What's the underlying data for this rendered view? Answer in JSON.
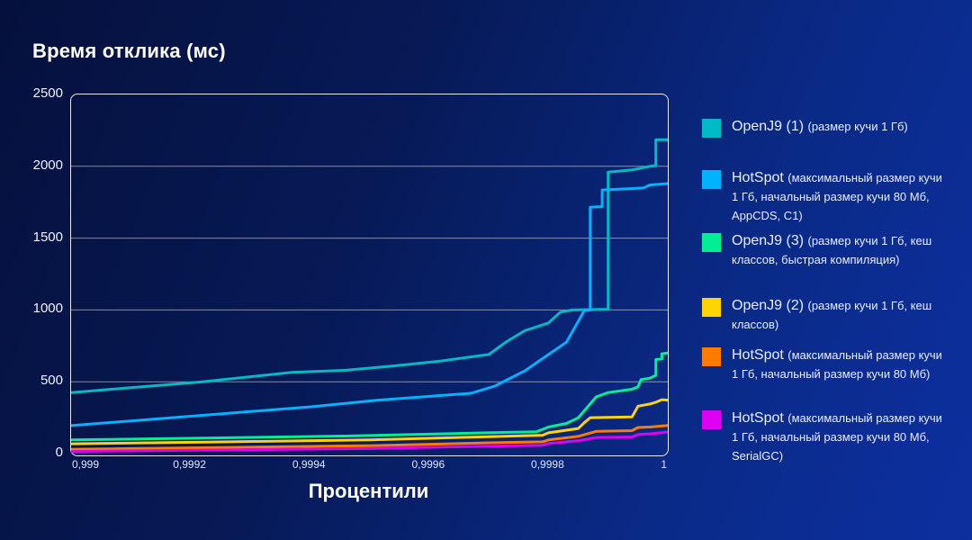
{
  "title": "Время отклика (мс)",
  "x_axis_title": "Процентили",
  "chart_data": {
    "type": "line",
    "title": "Время отклика (мс)",
    "xlabel": "Процентили",
    "ylabel": "",
    "xlim": [
      0.999,
      1.0
    ],
    "ylim": [
      0,
      2500
    ],
    "grid": "horizontal",
    "grid_values": [
      500,
      1000,
      1500,
      2000
    ],
    "legend_position": "right",
    "y_ticks": [
      {
        "value": 2500,
        "label": "2500"
      },
      {
        "value": 2000,
        "label": "2000"
      },
      {
        "value": 1500,
        "label": "1500"
      },
      {
        "value": 1000,
        "label": "1000"
      },
      {
        "value": 500,
        "label": "500"
      },
      {
        "value": 0,
        "label": "0"
      }
    ],
    "x_ticks": [
      {
        "value": 0.999,
        "label": "0,999"
      },
      {
        "value": 0.9992,
        "label": "0,9992"
      },
      {
        "value": 0.9994,
        "label": "0,9994"
      },
      {
        "value": 0.9996,
        "label": "0,9996"
      },
      {
        "value": 0.9998,
        "label": "0,9998"
      },
      {
        "value": 1.0,
        "label": "1"
      }
    ],
    "series": [
      {
        "id": "openj9-1",
        "name": "OpenJ9 (1)",
        "desc": "(размер кучи 1 Гб)",
        "color": "#00bac8",
        "points": [
          [
            0.999,
            425
          ],
          [
            0.99922,
            500
          ],
          [
            0.99937,
            565
          ],
          [
            0.99946,
            580
          ],
          [
            0.99954,
            610
          ],
          [
            0.99962,
            645
          ],
          [
            0.9997,
            690
          ],
          [
            0.99973,
            780
          ],
          [
            0.99976,
            855
          ],
          [
            0.9998,
            910
          ],
          [
            0.99982,
            985
          ],
          [
            0.99984,
            1000
          ],
          [
            0.9999,
            1005
          ],
          [
            0.9999,
            1960
          ],
          [
            0.99994,
            1975
          ],
          [
            0.99997,
            2000
          ],
          [
            0.99998,
            2005
          ],
          [
            0.99998,
            2185
          ],
          [
            1,
            2185
          ]
        ]
      },
      {
        "id": "hotspot-appcds-c1",
        "name": "HotSpot",
        "desc": "(максимальный размер кучи 1 Гб, начальный размер кучи 80 Мб, AppCDS, C1)",
        "color": "#00b3ff",
        "points": [
          [
            0.999,
            195
          ],
          [
            0.9994,
            325
          ],
          [
            0.99951,
            370
          ],
          [
            0.99967,
            420
          ],
          [
            0.99971,
            470
          ],
          [
            0.99976,
            575
          ],
          [
            0.9998,
            690
          ],
          [
            0.99983,
            775
          ],
          [
            0.99986,
            995
          ],
          [
            0.99987,
            1000
          ],
          [
            0.99987,
            1715
          ],
          [
            0.99989,
            1720
          ],
          [
            0.99989,
            1835
          ],
          [
            0.99994,
            1845
          ],
          [
            0.99996,
            1850
          ],
          [
            0.99997,
            1870
          ],
          [
            1,
            1880
          ]
        ]
      },
      {
        "id": "openj9-3",
        "name": "OpenJ9 (3)",
        "desc": "(размер кучи 1 Гб, кеш классов, быстрая компиляция)",
        "color": "#00ef94",
        "points": [
          [
            0.999,
            95
          ],
          [
            0.99946,
            122
          ],
          [
            0.99973,
            148
          ],
          [
            0.99978,
            152
          ],
          [
            0.9998,
            185
          ],
          [
            0.99983,
            210
          ],
          [
            0.99985,
            250
          ],
          [
            0.99988,
            395
          ],
          [
            0.9999,
            425
          ],
          [
            0.99994,
            448
          ],
          [
            0.99995,
            465
          ],
          [
            0.999955,
            515
          ],
          [
            0.99997,
            525
          ],
          [
            0.99998,
            545
          ],
          [
            0.99998,
            655
          ],
          [
            0.99999,
            660
          ],
          [
            0.99999,
            695
          ],
          [
            1,
            700
          ]
        ]
      },
      {
        "id": "openj9-2",
        "name": "OpenJ9 (2)",
        "desc": "(размер кучи 1 Гб, кеш классов)",
        "color": "#ffd400",
        "points": [
          [
            0.999,
            68
          ],
          [
            0.9995,
            95
          ],
          [
            0.9997,
            118
          ],
          [
            0.99979,
            128
          ],
          [
            0.9998,
            145
          ],
          [
            0.99985,
            175
          ],
          [
            0.99986,
            215
          ],
          [
            0.99987,
            250
          ],
          [
            0.99994,
            255
          ],
          [
            0.99995,
            330
          ],
          [
            0.99997,
            345
          ],
          [
            0.99998,
            358
          ],
          [
            0.99999,
            375
          ],
          [
            1,
            372
          ]
        ]
      },
      {
        "id": "hotspot-80mb",
        "name": "HotSpot",
        "desc": "(максимальный размер кучи 1 Гб, начальный размер кучи 80 Мб)",
        "color": "#ff7b00",
        "points": [
          [
            0.999,
            30
          ],
          [
            0.9995,
            55
          ],
          [
            0.9997,
            75
          ],
          [
            0.99979,
            82
          ],
          [
            0.9998,
            95
          ],
          [
            0.99985,
            120
          ],
          [
            0.99988,
            155
          ],
          [
            0.99994,
            160
          ],
          [
            0.99995,
            182
          ],
          [
            0.99997,
            185
          ],
          [
            1,
            196
          ]
        ]
      },
      {
        "id": "hotspot-serialgc",
        "name": "HotSpot",
        "desc": "(максимальный размер кучи 1 Гб, начальный размер кучи 80 Мб, SerialGC)",
        "color": "#de00f2",
        "points": [
          [
            0.999,
            15
          ],
          [
            0.9995,
            35
          ],
          [
            0.9997,
            52
          ],
          [
            0.99979,
            58
          ],
          [
            0.9998,
            70
          ],
          [
            0.99985,
            90
          ],
          [
            0.99988,
            112
          ],
          [
            0.99994,
            116
          ],
          [
            0.99995,
            133
          ],
          [
            0.99997,
            138
          ],
          [
            1,
            150
          ]
        ]
      }
    ]
  }
}
